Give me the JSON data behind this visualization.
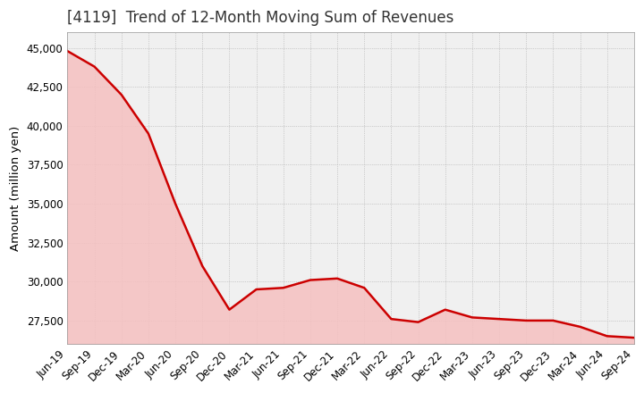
{
  "title": "[4119]  Trend of 12-Month Moving Sum of Revenues",
  "ylabel": "Amount (million yen)",
  "background_color": "#ffffff",
  "plot_bg_color": "#f0f0f0",
  "grid_color": "#aaaaaa",
  "line_color": "#cc0000",
  "fill_color": "#f5c0c0",
  "x_labels": [
    "Jun-19",
    "Sep-19",
    "Dec-19",
    "Mar-20",
    "Jun-20",
    "Sep-20",
    "Dec-20",
    "Mar-21",
    "Jun-21",
    "Sep-21",
    "Dec-21",
    "Mar-22",
    "Jun-22",
    "Sep-22",
    "Dec-22",
    "Mar-23",
    "Jun-23",
    "Sep-23",
    "Dec-23",
    "Mar-24",
    "Jun-24",
    "Sep-24"
  ],
  "values": [
    44800,
    43800,
    42000,
    39500,
    35000,
    31000,
    28200,
    29500,
    29600,
    30100,
    30200,
    29600,
    27600,
    27400,
    28200,
    27700,
    27600,
    27500,
    27500,
    27100,
    26500,
    26400
  ],
  "ylim_min": 26000,
  "ylim_max": 46000,
  "yticks": [
    27500,
    30000,
    32500,
    35000,
    37500,
    40000,
    42500,
    45000
  ],
  "title_fontsize": 12,
  "tick_fontsize": 8.5,
  "label_fontsize": 9.5
}
